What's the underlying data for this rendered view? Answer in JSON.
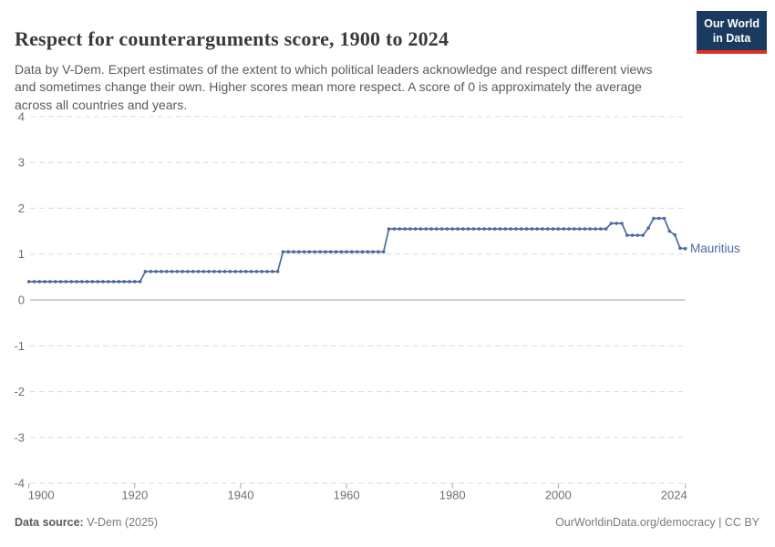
{
  "header": {
    "title": "Respect for counterarguments score, 1900 to 2024",
    "subtitle": "Data by V-Dem. Expert estimates of the extent to which political leaders acknowledge and respect different views and sometimes change their own. Higher scores mean more respect. A score of 0 is approximately the average across all countries and years.",
    "logo": {
      "line1": "Our World",
      "line2": "in Data",
      "bg_color": "#1a3a5f",
      "accent_color": "#dc2f25"
    }
  },
  "footer": {
    "source_label": "Data source:",
    "source_value": " V-Dem (2025)",
    "right_text": "OurWorldinData.org/democracy | CC BY"
  },
  "chart_data": {
    "type": "line",
    "title": "Respect for counterarguments score, 1900 to 2024",
    "xlabel": "",
    "ylabel": "",
    "xlim": [
      1900,
      2024
    ],
    "ylim": [
      -4,
      4
    ],
    "x_ticks": [
      1900,
      1920,
      1940,
      1960,
      1980,
      2000,
      2024
    ],
    "y_ticks": [
      4,
      3,
      2,
      1,
      0,
      -1,
      -2,
      -3,
      -4
    ],
    "grid": "horizontal-dashed",
    "legend": "inline-end-label",
    "colors": {
      "grid": "#dcdcdc",
      "zero_line": "#a3a3a3",
      "axis_text": "#6f6f6f",
      "tick_mark": "#a6a6a6"
    },
    "series": [
      {
        "name": "Mauritius",
        "color": "#4c6a9c",
        "points": [
          [
            1900,
            0.4
          ],
          [
            1901,
            0.4
          ],
          [
            1902,
            0.4
          ],
          [
            1903,
            0.4
          ],
          [
            1904,
            0.4
          ],
          [
            1905,
            0.4
          ],
          [
            1906,
            0.4
          ],
          [
            1907,
            0.4
          ],
          [
            1908,
            0.4
          ],
          [
            1909,
            0.4
          ],
          [
            1910,
            0.4
          ],
          [
            1911,
            0.4
          ],
          [
            1912,
            0.4
          ],
          [
            1913,
            0.4
          ],
          [
            1914,
            0.4
          ],
          [
            1915,
            0.4
          ],
          [
            1916,
            0.4
          ],
          [
            1917,
            0.4
          ],
          [
            1918,
            0.4
          ],
          [
            1919,
            0.4
          ],
          [
            1920,
            0.4
          ],
          [
            1921,
            0.4
          ],
          [
            1922,
            0.62
          ],
          [
            1923,
            0.62
          ],
          [
            1924,
            0.62
          ],
          [
            1925,
            0.62
          ],
          [
            1926,
            0.62
          ],
          [
            1927,
            0.62
          ],
          [
            1928,
            0.62
          ],
          [
            1929,
            0.62
          ],
          [
            1930,
            0.62
          ],
          [
            1931,
            0.62
          ],
          [
            1932,
            0.62
          ],
          [
            1933,
            0.62
          ],
          [
            1934,
            0.62
          ],
          [
            1935,
            0.62
          ],
          [
            1936,
            0.62
          ],
          [
            1937,
            0.62
          ],
          [
            1938,
            0.62
          ],
          [
            1939,
            0.62
          ],
          [
            1940,
            0.62
          ],
          [
            1941,
            0.62
          ],
          [
            1942,
            0.62
          ],
          [
            1943,
            0.62
          ],
          [
            1944,
            0.62
          ],
          [
            1945,
            0.62
          ],
          [
            1946,
            0.62
          ],
          [
            1947,
            0.62
          ],
          [
            1948,
            1.05
          ],
          [
            1949,
            1.05
          ],
          [
            1950,
            1.05
          ],
          [
            1951,
            1.05
          ],
          [
            1952,
            1.05
          ],
          [
            1953,
            1.05
          ],
          [
            1954,
            1.05
          ],
          [
            1955,
            1.05
          ],
          [
            1956,
            1.05
          ],
          [
            1957,
            1.05
          ],
          [
            1958,
            1.05
          ],
          [
            1959,
            1.05
          ],
          [
            1960,
            1.05
          ],
          [
            1961,
            1.05
          ],
          [
            1962,
            1.05
          ],
          [
            1963,
            1.05
          ],
          [
            1964,
            1.05
          ],
          [
            1965,
            1.05
          ],
          [
            1966,
            1.05
          ],
          [
            1967,
            1.05
          ],
          [
            1968,
            1.55
          ],
          [
            1969,
            1.55
          ],
          [
            1970,
            1.55
          ],
          [
            1971,
            1.55
          ],
          [
            1972,
            1.55
          ],
          [
            1973,
            1.55
          ],
          [
            1974,
            1.55
          ],
          [
            1975,
            1.55
          ],
          [
            1976,
            1.55
          ],
          [
            1977,
            1.55
          ],
          [
            1978,
            1.55
          ],
          [
            1979,
            1.55
          ],
          [
            1980,
            1.55
          ],
          [
            1981,
            1.55
          ],
          [
            1982,
            1.55
          ],
          [
            1983,
            1.55
          ],
          [
            1984,
            1.55
          ],
          [
            1985,
            1.55
          ],
          [
            1986,
            1.55
          ],
          [
            1987,
            1.55
          ],
          [
            1988,
            1.55
          ],
          [
            1989,
            1.55
          ],
          [
            1990,
            1.55
          ],
          [
            1991,
            1.55
          ],
          [
            1992,
            1.55
          ],
          [
            1993,
            1.55
          ],
          [
            1994,
            1.55
          ],
          [
            1995,
            1.55
          ],
          [
            1996,
            1.55
          ],
          [
            1997,
            1.55
          ],
          [
            1998,
            1.55
          ],
          [
            1999,
            1.55
          ],
          [
            2000,
            1.55
          ],
          [
            2001,
            1.55
          ],
          [
            2002,
            1.55
          ],
          [
            2003,
            1.55
          ],
          [
            2004,
            1.55
          ],
          [
            2005,
            1.55
          ],
          [
            2006,
            1.55
          ],
          [
            2007,
            1.55
          ],
          [
            2008,
            1.55
          ],
          [
            2009,
            1.55
          ],
          [
            2010,
            1.67
          ],
          [
            2011,
            1.67
          ],
          [
            2012,
            1.67
          ],
          [
            2013,
            1.41
          ],
          [
            2014,
            1.41
          ],
          [
            2015,
            1.41
          ],
          [
            2016,
            1.41
          ],
          [
            2017,
            1.57
          ],
          [
            2018,
            1.78
          ],
          [
            2019,
            1.78
          ],
          [
            2020,
            1.78
          ],
          [
            2021,
            1.5
          ],
          [
            2022,
            1.42
          ],
          [
            2023,
            1.13
          ],
          [
            2024,
            1.12
          ]
        ]
      }
    ]
  }
}
